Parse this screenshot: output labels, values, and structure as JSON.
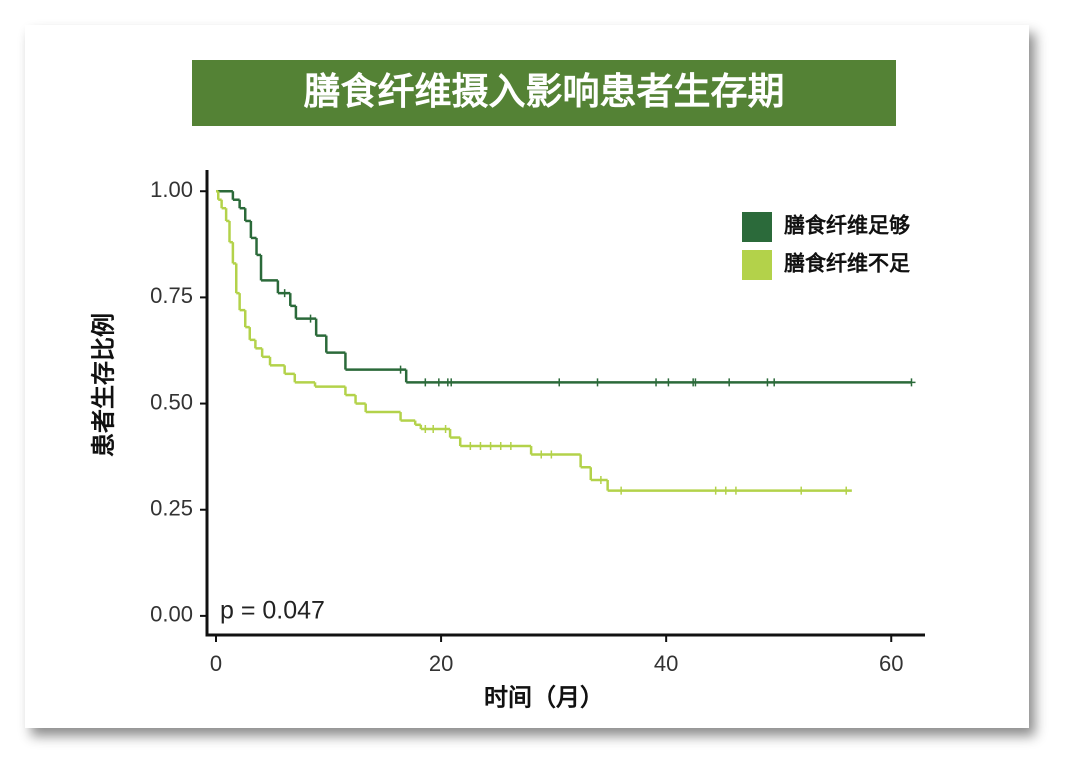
{
  "chart_data": {
    "type": "step",
    "title": "膳食纤维摄入影响患者生存期",
    "xlabel": "时间（月）",
    "ylabel": "患者生存比例",
    "annotation": "p = 0.047",
    "xlim": [
      -0.8,
      63
    ],
    "ylim": [
      -0.045,
      1.05
    ],
    "xticks": [
      0,
      20,
      40,
      60
    ],
    "yticks": [
      {
        "value": 0,
        "label": "0.00"
      },
      {
        "value": 0.25,
        "label": "0.25"
      },
      {
        "value": 0.5,
        "label": "0.50"
      },
      {
        "value": 0.75,
        "label": "0.75"
      },
      {
        "value": 1,
        "label": "1.00"
      }
    ],
    "legend": "top-right",
    "series": [
      {
        "name": "膳食纤维足够",
        "color": "#2b6a3a",
        "x": [
          0,
          1.5,
          2.1,
          2.6,
          3.1,
          3.6,
          4.0,
          5.5,
          6.6,
          7.1,
          8.9,
          9.8,
          11.5,
          16.9,
          61.8
        ],
        "values": [
          1,
          0.98,
          0.96,
          0.93,
          0.89,
          0.85,
          0.79,
          0.76,
          0.73,
          0.7,
          0.66,
          0.62,
          0.58,
          0.55,
          0.55
        ],
        "censored": [
          6.1,
          8.4,
          16.4,
          18.6,
          19.8,
          20.6,
          20.9,
          30.5,
          33.9,
          39.1,
          40.2,
          42.4,
          42.6,
          45.6,
          49.0,
          49.6,
          61.8
        ]
      },
      {
        "name": "膳食纤维不足",
        "color": "#b3d24a",
        "x": [
          0,
          0.2,
          0.5,
          0.9,
          1.2,
          1.5,
          1.8,
          2.1,
          2.6,
          3.0,
          3.5,
          4.1,
          4.8,
          6.1,
          7.0,
          8.8,
          11.5,
          12.4,
          13.3,
          16.4,
          17.7,
          18.2,
          20.8,
          21.7,
          28.0,
          32.4,
          33.3,
          34.8,
          56.5
        ],
        "values": [
          1,
          0.98,
          0.96,
          0.93,
          0.88,
          0.83,
          0.76,
          0.72,
          0.68,
          0.65,
          0.63,
          0.61,
          0.59,
          0.57,
          0.55,
          0.54,
          0.52,
          0.5,
          0.48,
          0.46,
          0.45,
          0.44,
          0.42,
          0.4,
          0.38,
          0.35,
          0.32,
          0.295,
          0.295
        ],
        "censored": [
          18.6,
          19.3,
          20.4,
          22.6,
          23.5,
          24.4,
          25.3,
          26.2,
          28.9,
          29.8,
          34.2,
          36.0,
          44.4,
          45.3,
          46.2,
          52.0,
          56.0
        ]
      }
    ]
  }
}
